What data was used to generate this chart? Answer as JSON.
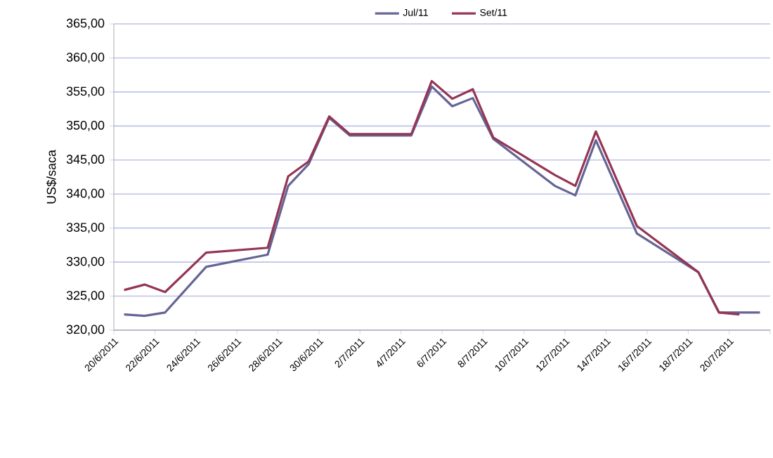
{
  "chart_data": {
    "type": "line",
    "ylabel": "US$/saca",
    "x": [
      "2011-06-20T12:00",
      "2011-06-21T12:00",
      "2011-06-22T12:00",
      "2011-06-24T12:00",
      "2011-06-27T12:00",
      "2011-06-28T12:00",
      "2011-06-29T12:00",
      "2011-06-30T12:00",
      "2011-07-01T12:00",
      "2011-07-04T12:00",
      "2011-07-05T12:00",
      "2011-07-06T12:00",
      "2011-07-07T12:00",
      "2011-07-08T12:00",
      "2011-07-11T12:00",
      "2011-07-12T12:00",
      "2011-07-13T12:00",
      "2011-07-15T12:00",
      "2011-07-18T12:00",
      "2011-07-19T12:00",
      "2011-07-20T12:00",
      "2011-07-21T12:00"
    ],
    "series": [
      {
        "name": "Jul/11",
        "color": "#646496",
        "values": [
          322.3,
          322.1,
          322.6,
          329.3,
          331.1,
          341.2,
          344.4,
          351.2,
          348.6,
          348.6,
          355.8,
          352.9,
          354.1,
          348.1,
          341.2,
          339.8,
          347.9,
          334.2,
          328.5,
          322.6,
          322.6,
          322.6
        ]
      },
      {
        "name": "Set/11",
        "color": "#953553",
        "values": [
          325.9,
          326.7,
          325.6,
          331.4,
          332.1,
          342.6,
          344.8,
          351.4,
          348.8,
          348.8,
          356.6,
          354.0,
          355.4,
          348.3,
          342.8,
          341.2,
          349.2,
          335.3,
          328.5,
          322.6,
          322.3,
          null
        ]
      }
    ],
    "xlim": [
      "2011-06-20",
      "2011-07-22"
    ],
    "xticks": [
      {
        "value": "2011-06-20",
        "label": "20/6/2011"
      },
      {
        "value": "2011-06-22",
        "label": "22/6/2011"
      },
      {
        "value": "2011-06-24",
        "label": "24/6/2011"
      },
      {
        "value": "2011-06-26",
        "label": "26/6/2011"
      },
      {
        "value": "2011-06-28",
        "label": "28/6/2011"
      },
      {
        "value": "2011-06-30",
        "label": "30/6/2011"
      },
      {
        "value": "2011-07-02",
        "label": "2/7/2011"
      },
      {
        "value": "2011-07-04",
        "label": "4/7/2011"
      },
      {
        "value": "2011-07-06",
        "label": "6/7/2011"
      },
      {
        "value": "2011-07-08",
        "label": "8/7/2011"
      },
      {
        "value": "2011-07-10",
        "label": "10/7/2011"
      },
      {
        "value": "2011-07-12",
        "label": "12/7/2011"
      },
      {
        "value": "2011-07-14",
        "label": "14/7/2011"
      },
      {
        "value": "2011-07-16",
        "label": "16/7/2011"
      },
      {
        "value": "2011-07-18",
        "label": "18/7/2011"
      },
      {
        "value": "2011-07-20",
        "label": "20/7/2011"
      },
      {
        "value": "2011-07-22",
        "label": null
      }
    ],
    "ylim": [
      320,
      365
    ],
    "yticks": [
      {
        "value": 320,
        "label": "320,00"
      },
      {
        "value": 325,
        "label": "325,00"
      },
      {
        "value": 330,
        "label": "330,00"
      },
      {
        "value": 335,
        "label": "335,00"
      },
      {
        "value": 340,
        "label": "340,00"
      },
      {
        "value": 345,
        "label": "345,00"
      },
      {
        "value": 350,
        "label": "350,00"
      },
      {
        "value": 355,
        "label": "355,00"
      },
      {
        "value": 360,
        "label": "360,00"
      },
      {
        "value": 365,
        "label": "365,00"
      }
    ],
    "grid": "y",
    "legend": "top",
    "marker": "none",
    "line_style": "solid"
  }
}
